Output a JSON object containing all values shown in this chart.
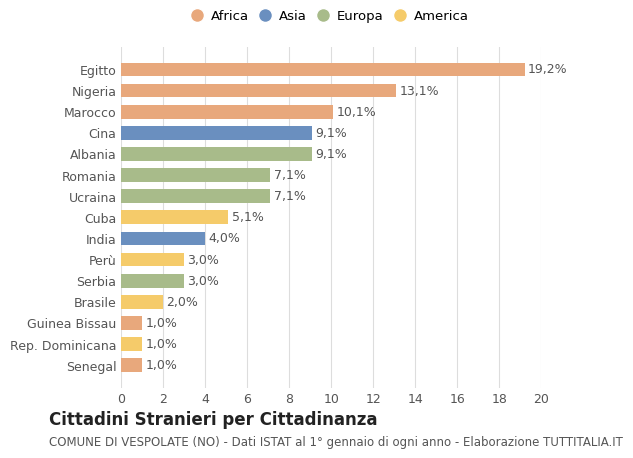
{
  "categories": [
    "Egitto",
    "Nigeria",
    "Marocco",
    "Cina",
    "Albania",
    "Romania",
    "Ucraina",
    "Cuba",
    "India",
    "Perù",
    "Serbia",
    "Brasile",
    "Guinea Bissau",
    "Rep. Dominicana",
    "Senegal"
  ],
  "values": [
    19.2,
    13.1,
    10.1,
    9.1,
    9.1,
    7.1,
    7.1,
    5.1,
    4.0,
    3.0,
    3.0,
    2.0,
    1.0,
    1.0,
    1.0
  ],
  "labels": [
    "19,2%",
    "13,1%",
    "10,1%",
    "9,1%",
    "9,1%",
    "7,1%",
    "7,1%",
    "5,1%",
    "4,0%",
    "3,0%",
    "3,0%",
    "2,0%",
    "1,0%",
    "1,0%",
    "1,0%"
  ],
  "continents": [
    "Africa",
    "Africa",
    "Africa",
    "Asia",
    "Europa",
    "Europa",
    "Europa",
    "America",
    "Asia",
    "America",
    "Europa",
    "America",
    "Africa",
    "America",
    "Africa"
  ],
  "colors": {
    "Africa": "#E8A87C",
    "Asia": "#6A8FBF",
    "Europa": "#A8BB8A",
    "America": "#F5CB6A"
  },
  "legend_order": [
    "Africa",
    "Asia",
    "Europa",
    "America"
  ],
  "title": "Cittadini Stranieri per Cittadinanza",
  "subtitle": "COMUNE DI VESPOLATE (NO) - Dati ISTAT al 1° gennaio di ogni anno - Elaborazione TUTTITALIA.IT",
  "xlim": [
    0,
    20
  ],
  "xticks": [
    0,
    2,
    4,
    6,
    8,
    10,
    12,
    14,
    16,
    18,
    20
  ],
  "background_color": "#ffffff",
  "grid_color": "#dddddd",
  "bar_height": 0.65,
  "label_fontsize": 9,
  "tick_fontsize": 9,
  "title_fontsize": 12,
  "subtitle_fontsize": 8.5
}
